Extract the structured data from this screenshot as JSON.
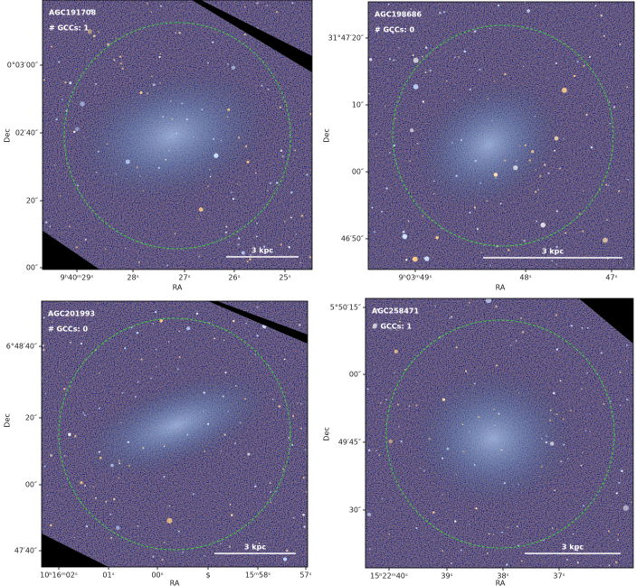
{
  "panels": [
    {
      "name": "AGC191708",
      "gccs": "# GCCs: 1",
      "scale": "3 kpc",
      "x_label": "RA",
      "y_label": "Dec",
      "x_ticks": [
        "9ʰ40ᵐ29ˢ",
        "28ˢ",
        "27ˢ",
        "26ˢ",
        "25ˢ"
      ],
      "y_ticks": [
        "0°03′00″",
        "02′40″",
        "20″",
        "00″"
      ]
    },
    {
      "name": "AGC198686",
      "gccs": "# GCCs: 0",
      "scale": "3 kpc",
      "x_label": "RA",
      "y_label": "Dec",
      "x_ticks": [
        "9ʰ03ᵐ49ˢ",
        "48ˢ",
        "47ˢ"
      ],
      "y_ticks": [
        "31°47′20″",
        "10″",
        "00″",
        "46′50″"
      ]
    },
    {
      "name": "AGC201993",
      "gccs": "# GCCs: 0",
      "scale": "3 kpc",
      "x_label": "RA",
      "y_label": "Dec",
      "x_ticks": [
        "10ʰ16ᵐ02ˢ",
        "01ˢ",
        "00ˢ",
        "$",
        "15ᵐ58ˢ",
        "57ˢ"
      ],
      "y_ticks": [
        "6°48′40″",
        "20″",
        "00″",
        "47′40″"
      ]
    },
    {
      "name": "AGC258471",
      "gccs": "# GCCs: 1",
      "scale": "3 kpc",
      "x_label": "RA",
      "y_label": "Dec",
      "x_ticks": [
        "15ʰ22ᵐ40ˢ",
        "39ˢ",
        "38ˢ",
        "37ˢ"
      ],
      "y_ticks": [
        "5°50′15″",
        "00″",
        "49′45″",
        "30″"
      ]
    }
  ]
}
